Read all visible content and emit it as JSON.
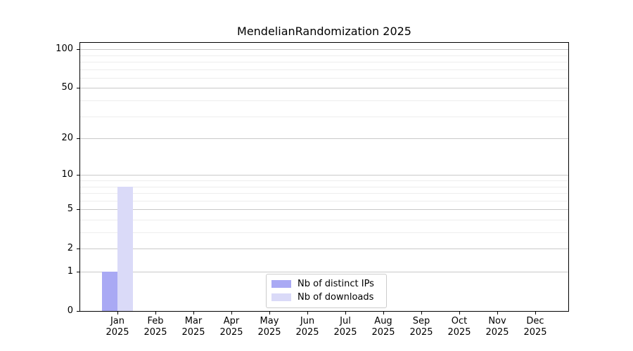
{
  "chart_data": {
    "type": "bar",
    "title": "MendelianRandomization 2025",
    "categories": [
      "Jan",
      "Feb",
      "Mar",
      "Apr",
      "May",
      "Jun",
      "Jul",
      "Aug",
      "Sep",
      "Oct",
      "Nov",
      "Dec"
    ],
    "x_sublabel_year": "2025",
    "series": [
      {
        "name": "Nb of distinct IPs",
        "color": "#a9a9f4",
        "values": [
          1,
          0,
          0,
          0,
          0,
          0,
          0,
          0,
          0,
          0,
          0,
          0
        ]
      },
      {
        "name": "Nb of downloads",
        "color": "#dadaf8",
        "values": [
          8,
          0,
          0,
          0,
          0,
          0,
          0,
          0,
          0,
          0,
          0,
          0
        ]
      }
    ],
    "yscale": "log1p",
    "ylim": [
      0,
      113
    ],
    "y_major_ticks": [
      100,
      50,
      20,
      10,
      5,
      2,
      1,
      0
    ],
    "y_minor_gridlines": [
      3,
      4,
      6,
      7,
      8,
      9,
      30,
      40,
      60,
      70,
      80,
      90
    ],
    "grid": true,
    "legend_position": "lower center"
  },
  "colors": {
    "major_grid": "#c9c9c9",
    "minor_grid": "#ededed",
    "spine": "#000000",
    "background": "#ffffff"
  }
}
